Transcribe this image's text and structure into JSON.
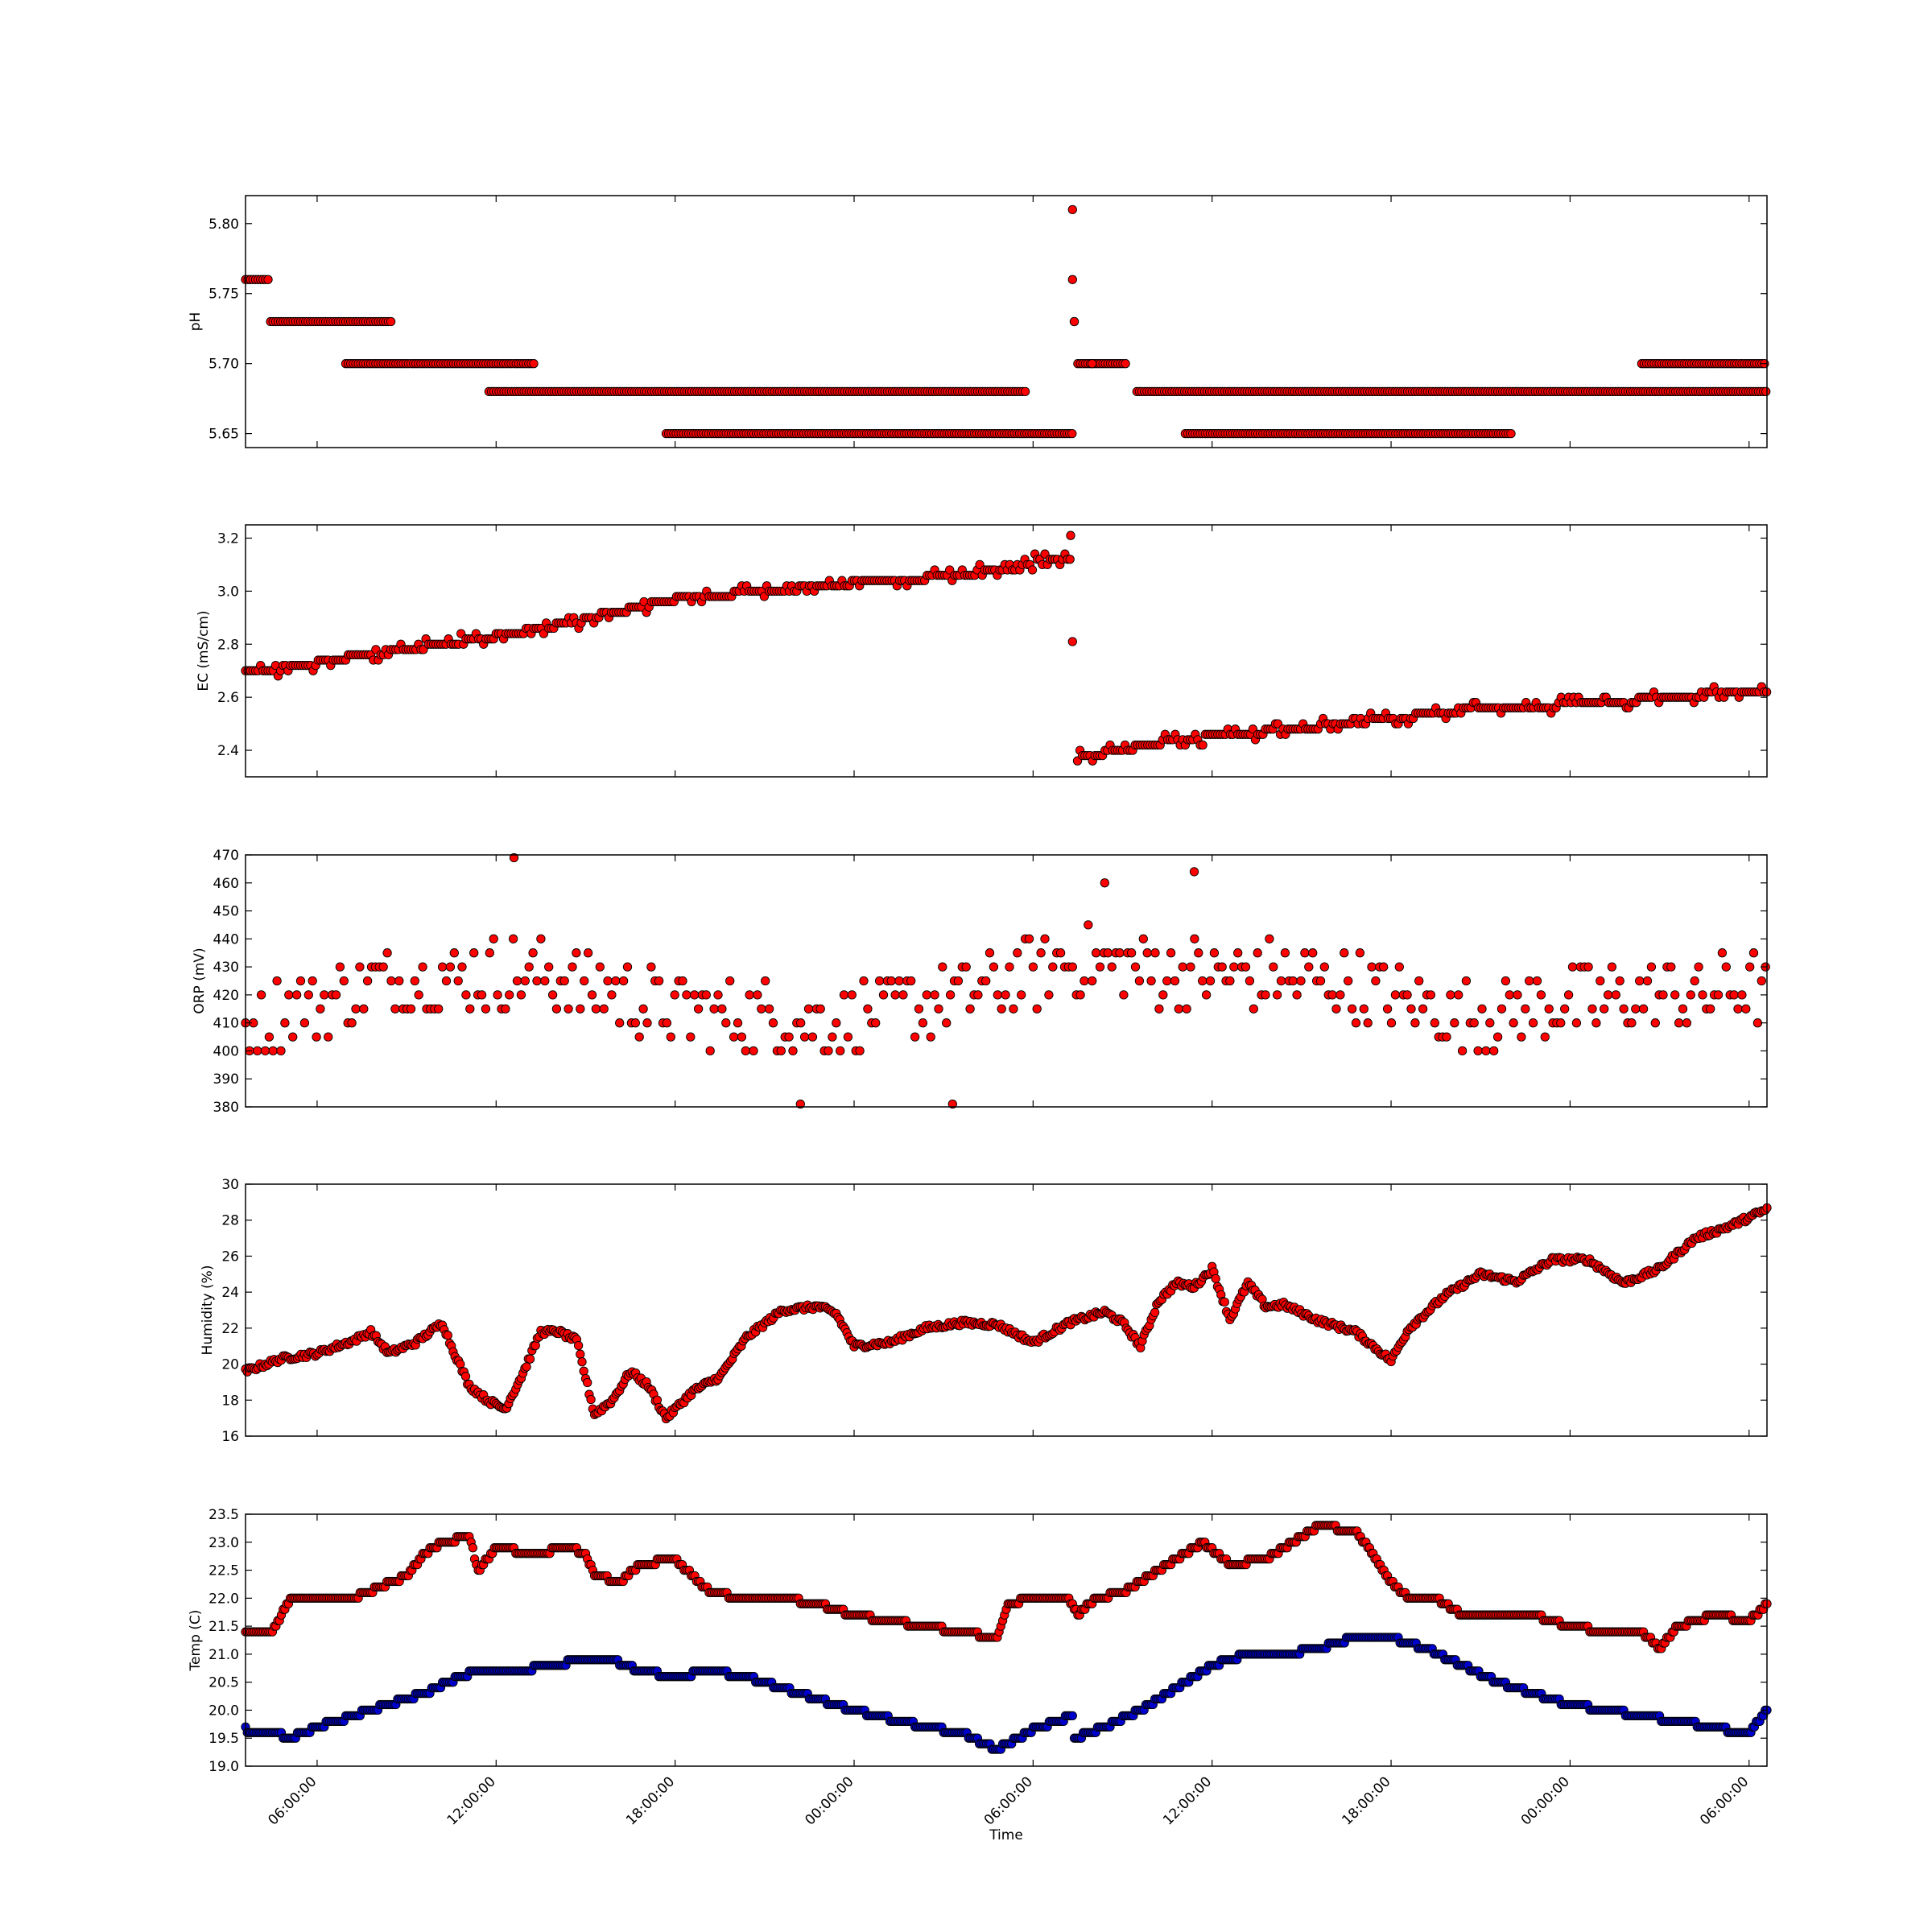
{
  "chart_data": [
    {
      "type": "scatter",
      "ylabel": "pH",
      "ylim": [
        5.64,
        5.82
      ],
      "yticks": [
        "5.65",
        "5.70",
        "5.75",
        "5.80"
      ],
      "colors": {
        "marker": "#ff0000",
        "edge": "#000000"
      },
      "x_unit": "hours since first x tick minus 4",
      "series": [
        {
          "name": "",
          "segments": [
            {
              "x": [
                0,
                1.4
              ],
              "y": 5.76
            },
            {
              "x": [
                1.4,
                8.2
              ],
              "y": 5.73
            },
            {
              "x": [
                5.6,
                16.2
              ],
              "y": 5.7
            },
            {
              "x": [
                13.6,
                43.6
              ],
              "y": 5.68
            },
            {
              "x": [
                23.5,
                46.2
              ],
              "y": 5.65
            },
            {
              "x": [
                46.5,
                49.2
              ],
              "y": 5.7
            },
            {
              "x": [
                49.8,
                85
              ],
              "y": 5.68
            },
            {
              "x": [
                52.5,
                70.8
              ],
              "y": 5.65
            },
            {
              "x": [
                78,
                85
              ],
              "y": 5.7
            }
          ],
          "points": [
            [
              46.2,
              5.81
            ],
            [
              46.2,
              5.76
            ],
            [
              46.3,
              5.73
            ],
            [
              46.3,
              5.73
            ],
            [
              47.3,
              5.7
            ]
          ]
        }
      ]
    },
    {
      "type": "scatter",
      "ylabel": "EC (mS/cm)",
      "ylim": [
        2.3,
        3.25
      ],
      "yticks": [
        "2.4",
        "2.6",
        "2.8",
        "3.0",
        "3.2"
      ],
      "colors": {
        "marker": "#ff0000",
        "edge": "#000000"
      },
      "series": [
        {
          "name": "",
          "trend": [
            [
              0,
              2.69
            ],
            [
              8,
              2.77
            ],
            [
              16,
              2.85
            ],
            [
              24,
              2.97
            ],
            [
              32,
              3.02
            ],
            [
              40,
              3.06
            ],
            [
              44,
              3.11
            ],
            [
              46.2,
              3.13
            ],
            [
              46.4,
              2.37
            ],
            [
              52,
              2.44
            ],
            [
              60,
              2.49
            ],
            [
              68,
              2.55
            ],
            [
              76,
              2.58
            ],
            [
              85,
              2.63
            ]
          ],
          "points": [
            [
              46.1,
              3.21
            ],
            [
              46.2,
              2.81
            ]
          ]
        }
      ]
    },
    {
      "type": "scatter",
      "ylabel": "ORP (mV)",
      "ylim": [
        380,
        470
      ],
      "yticks": [
        "380",
        "390",
        "400",
        "410",
        "420",
        "430",
        "440",
        "450",
        "460",
        "470"
      ],
      "colors": {
        "marker": "#ff0000",
        "edge": "#000000"
      },
      "series": [
        {
          "name": "",
          "band": [
            [
              0,
              410
            ],
            [
              8,
              425
            ],
            [
              16,
              428
            ],
            [
              24,
              415
            ],
            [
              32,
              410
            ],
            [
              40,
              420
            ],
            [
              46,
              432
            ],
            [
              52,
              428
            ],
            [
              60,
              425
            ],
            [
              68,
              412
            ],
            [
              76,
              418
            ],
            [
              85,
              422
            ]
          ],
          "spread": 13,
          "step": 5,
          "points": [
            [
              15,
              469
            ],
            [
              39.5,
              381
            ],
            [
              31,
              381
            ],
            [
              53,
              464
            ],
            [
              48,
              460
            ]
          ]
        }
      ]
    },
    {
      "type": "scatter",
      "ylabel": "Humidity (%)",
      "ylim": [
        16,
        30
      ],
      "yticks": [
        "16",
        "18",
        "20",
        "22",
        "24",
        "26",
        "28",
        "30"
      ],
      "colors": {
        "marker": "#ff0000",
        "edge": "#000000"
      },
      "series": [
        {
          "name": "",
          "line": [
            [
              0,
              19.6
            ],
            [
              2,
              20.3
            ],
            [
              4,
              20.6
            ],
            [
              6,
              21.3
            ],
            [
              7,
              21.8
            ],
            [
              8,
              20.6
            ],
            [
              9.5,
              21.2
            ],
            [
              11,
              22.3
            ],
            [
              11.5,
              21.0
            ],
            [
              12.5,
              18.8
            ],
            [
              13.5,
              18.0
            ],
            [
              14.5,
              17.5
            ],
            [
              15.5,
              19.5
            ],
            [
              16.5,
              21.8
            ],
            [
              17.5,
              21.8
            ],
            [
              18.5,
              21.3
            ],
            [
              19.5,
              17.2
            ],
            [
              20.5,
              18.0
            ],
            [
              21.5,
              19.6
            ],
            [
              22.5,
              18.8
            ],
            [
              23.5,
              17.0
            ],
            [
              25,
              18.5
            ],
            [
              26.5,
              19.3
            ],
            [
              28,
              21.5
            ],
            [
              30,
              23.0
            ],
            [
              32,
              23.2
            ],
            [
              33,
              22.8
            ],
            [
              34,
              21.0
            ],
            [
              36,
              21.2
            ],
            [
              38,
              22.0
            ],
            [
              40,
              22.3
            ],
            [
              42,
              22.2
            ],
            [
              44,
              21.2
            ],
            [
              46,
              22.3
            ],
            [
              48,
              22.9
            ],
            [
              49,
              22.3
            ],
            [
              50,
              21.0
            ],
            [
              51,
              23.5
            ],
            [
              52,
              24.5
            ],
            [
              53,
              24.3
            ],
            [
              54,
              25.3
            ],
            [
              55,
              22.5
            ],
            [
              56,
              24.5
            ],
            [
              57,
              23.2
            ],
            [
              58,
              23.3
            ],
            [
              60,
              22.4
            ],
            [
              62,
              21.8
            ],
            [
              63,
              21.0
            ],
            [
              64,
              20.2
            ],
            [
              65,
              22.0
            ],
            [
              67,
              23.8
            ],
            [
              69,
              25.0
            ],
            [
              71,
              24.6
            ],
            [
              73,
              25.8
            ],
            [
              75,
              25.8
            ],
            [
              77,
              24.5
            ],
            [
              79,
              25.3
            ],
            [
              81,
              27.0
            ],
            [
              83,
              27.7
            ],
            [
              85,
              28.6
            ]
          ]
        }
      ]
    },
    {
      "type": "scatter",
      "ylabel": "Temp (C)",
      "xlabel": "Time",
      "ylim": [
        19,
        23.5
      ],
      "yticks": [
        "19.0",
        "19.5",
        "20.0",
        "20.5",
        "21.0",
        "21.5",
        "22.0",
        "22.5",
        "23.0",
        "23.5"
      ],
      "colors": {
        "red": "#ff0000",
        "blue": "#0000cc",
        "edge": "#000000"
      },
      "series": [
        {
          "name": "",
          "color": "red",
          "line": [
            [
              0,
              21.4
            ],
            [
              1.5,
              21.4
            ],
            [
              2.5,
              22.0
            ],
            [
              6,
              22.0
            ],
            [
              7.5,
              22.2
            ],
            [
              9,
              22.4
            ],
            [
              10,
              22.8
            ],
            [
              11,
              23.0
            ],
            [
              12.5,
              23.1
            ],
            [
              13,
              22.5
            ],
            [
              14,
              22.9
            ],
            [
              16,
              22.8
            ],
            [
              18,
              22.9
            ],
            [
              19,
              22.8
            ],
            [
              19.5,
              22.4
            ],
            [
              21,
              22.3
            ],
            [
              22,
              22.6
            ],
            [
              24,
              22.7
            ],
            [
              25,
              22.4
            ],
            [
              26,
              22.1
            ],
            [
              28,
              22.0
            ],
            [
              30,
              22.0
            ],
            [
              32,
              21.9
            ],
            [
              34,
              21.7
            ],
            [
              36,
              21.6
            ],
            [
              38,
              21.5
            ],
            [
              40,
              21.4
            ],
            [
              42,
              21.3
            ],
            [
              42.6,
              21.9
            ],
            [
              44,
              22.0
            ],
            [
              46,
              22.0
            ],
            [
              46.5,
              21.7
            ],
            [
              47.5,
              22.0
            ],
            [
              49,
              22.1
            ],
            [
              50,
              22.3
            ],
            [
              52,
              22.7
            ],
            [
              53.5,
              23.0
            ],
            [
              55,
              22.6
            ],
            [
              57,
              22.7
            ],
            [
              58,
              22.9
            ],
            [
              60,
              23.3
            ],
            [
              62,
              23.2
            ],
            [
              63,
              22.8
            ],
            [
              64,
              22.3
            ],
            [
              65,
              22.0
            ],
            [
              66.5,
              22.0
            ],
            [
              68,
              21.7
            ],
            [
              70,
              21.7
            ],
            [
              72,
              21.7
            ],
            [
              74,
              21.5
            ],
            [
              76,
              21.4
            ],
            [
              78,
              21.4
            ],
            [
              79,
              21.1
            ],
            [
              80,
              21.5
            ],
            [
              82,
              21.7
            ],
            [
              84,
              21.6
            ],
            [
              85,
              21.9
            ]
          ]
        },
        {
          "name": "",
          "color": "blue",
          "line": [
            [
              0,
              19.65
            ],
            [
              1.5,
              19.6
            ],
            [
              2.5,
              19.5
            ],
            [
              4,
              19.7
            ],
            [
              6,
              19.9
            ],
            [
              8,
              20.1
            ],
            [
              10,
              20.3
            ],
            [
              12,
              20.6
            ],
            [
              13,
              20.7
            ],
            [
              15,
              20.7
            ],
            [
              17,
              20.8
            ],
            [
              18,
              20.85
            ],
            [
              19,
              20.9
            ],
            [
              20.5,
              20.9
            ],
            [
              22,
              20.7
            ],
            [
              24,
              20.6
            ],
            [
              26,
              20.7
            ],
            [
              28,
              20.6
            ],
            [
              30,
              20.4
            ],
            [
              32,
              20.2
            ],
            [
              34,
              20.0
            ],
            [
              36,
              19.85
            ],
            [
              38,
              19.7
            ],
            [
              40,
              19.6
            ],
            [
              41,
              19.45
            ],
            [
              42,
              19.3
            ],
            [
              44,
              19.65
            ],
            [
              46.2,
              19.9
            ],
            [
              46.3,
              19.5
            ],
            [
              48,
              19.7
            ],
            [
              50,
              20.0
            ],
            [
              52,
              20.4
            ],
            [
              54,
              20.8
            ],
            [
              55.5,
              20.95
            ],
            [
              58,
              21.0
            ],
            [
              60,
              21.1
            ],
            [
              62,
              21.3
            ],
            [
              63.5,
              21.35
            ],
            [
              66,
              21.1
            ],
            [
              68,
              20.8
            ],
            [
              70,
              20.5
            ],
            [
              72,
              20.3
            ],
            [
              74,
              20.1
            ],
            [
              76,
              20.0
            ],
            [
              78,
              19.9
            ],
            [
              80,
              19.8
            ],
            [
              82,
              19.7
            ],
            [
              83.5,
              19.6
            ],
            [
              84,
              19.6
            ],
            [
              85,
              20.0
            ]
          ]
        }
      ]
    }
  ],
  "xaxis": {
    "ticks": [
      {
        "label": "06:00:00",
        "x": 4
      },
      {
        "label": "12:00:00",
        "x": 14
      },
      {
        "label": "18:00:00",
        "x": 24
      },
      {
        "label": "00:00:00",
        "x": 34
      },
      {
        "label": "06:00:00",
        "x": 44
      },
      {
        "label": "12:00:00",
        "x": 54
      },
      {
        "label": "18:00:00",
        "x": 64
      },
      {
        "label": "00:00:00",
        "x": 74
      },
      {
        "label": "06:00:00",
        "x": 84
      }
    ],
    "xlim": [
      0,
      85
    ],
    "xlabel": "Time"
  }
}
